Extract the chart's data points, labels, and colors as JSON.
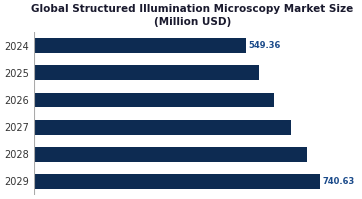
{
  "title_line1": "Global Structured Illumination Microscopy Market Size",
  "title_line2": "(Million USD)",
  "categories": [
    "2029",
    "2028",
    "2027",
    "2026",
    "2025",
    "2024"
  ],
  "values": [
    740.63,
    706.0,
    665.0,
    622.0,
    583.0,
    549.36
  ],
  "bar_color": "#0d2b52",
  "label_color": "#1a4a8a",
  "label_fontsize": 6.0,
  "title_fontsize": 7.5,
  "tick_fontsize": 7.0,
  "background_color": "#ffffff",
  "xlim_max": 820,
  "bar_height": 0.55
}
